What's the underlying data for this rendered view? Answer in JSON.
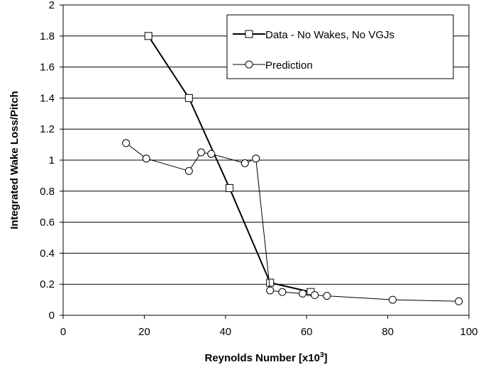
{
  "chart_data": {
    "type": "line",
    "title": "",
    "xlabel": "Reynolds Number [x10",
    "xlabel_sup": "3",
    "xlabel_end": "]",
    "ylabel": "Integrated Wake Loss/Pitch",
    "xlim": [
      0,
      100
    ],
    "ylim": [
      0,
      2
    ],
    "x_ticks": [
      0,
      20,
      40,
      60,
      80,
      100
    ],
    "y_ticks": [
      0,
      0.2,
      0.4,
      0.6,
      0.8,
      1,
      1.2,
      1.4,
      1.6,
      1.8,
      2
    ],
    "x_tick_labels": [
      "0",
      "20",
      "40",
      "60",
      "80",
      "100"
    ],
    "y_tick_labels": [
      "0",
      "0.2",
      "0.4",
      "0.6",
      "0.8",
      "1",
      "1.2",
      "1.4",
      "1.6",
      "1.8",
      "2"
    ],
    "grid": "horizontal",
    "legend_position": "top-right",
    "series": [
      {
        "name": "Data - No Wakes, No VGJs",
        "marker": "square",
        "color": "#000000",
        "x": [
          21,
          31,
          41,
          51,
          61
        ],
        "y": [
          1.8,
          1.4,
          0.82,
          0.21,
          0.15
        ]
      },
      {
        "name": "Prediction",
        "marker": "circle",
        "color": "#000000",
        "x": [
          15.5,
          20.5,
          31,
          34,
          36.5,
          44.8,
          47.5,
          51,
          54,
          59,
          62,
          65,
          81.2,
          97.5
        ],
        "y": [
          1.11,
          1.01,
          0.93,
          1.05,
          1.04,
          0.98,
          1.01,
          0.16,
          0.15,
          0.14,
          0.13,
          0.125,
          0.1,
          0.09
        ]
      }
    ]
  }
}
